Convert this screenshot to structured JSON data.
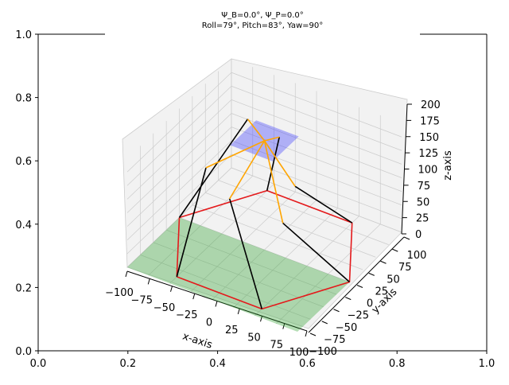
{
  "chart_data": {
    "type": "3d-line",
    "title_line1": "Ψ_B=0.0°, Ψ_P=0.0°",
    "title_line2": "Roll=79°, Pitch=83°, Yaw=90°",
    "xlabel": "x-axis",
    "ylabel": "y-axis",
    "zlabel": "z-axis",
    "xlim": [
      -100,
      100
    ],
    "ylim": [
      -100,
      100
    ],
    "zlim": [
      0,
      200
    ],
    "xticks": [
      "−100",
      "−75",
      "−50",
      "−25",
      "0",
      "25",
      "50",
      "75",
      "100"
    ],
    "yticks": [
      "−100",
      "−75",
      "−50",
      "−25",
      "0",
      "25",
      "50",
      "75",
      "100"
    ],
    "zticks": [
      "0",
      "25",
      "50",
      "75",
      "100",
      "125",
      "150",
      "175",
      "200"
    ],
    "outer_xticks": [
      "0.0",
      "0.2",
      "0.4",
      "0.6",
      "0.8",
      "1.0"
    ],
    "outer_yticks": [
      "0.0",
      "0.2",
      "0.4",
      "0.6",
      "0.8",
      "1.0"
    ],
    "grid": true,
    "colors": {
      "base": "#e41a1c",
      "legs": "#000000",
      "links": "#ffa500",
      "base_plane": "#2ca02c",
      "platform_plane": "#3333ff",
      "grid": "#cccccc",
      "pane": "#f2f2f2"
    },
    "base_points": [
      [
        -100,
        0,
        0
      ],
      [
        -50,
        86.6,
        0
      ],
      [
        50,
        86.6,
        0
      ],
      [
        100,
        0,
        0
      ],
      [
        50,
        -86.6,
        0
      ],
      [
        -50,
        -86.6,
        0
      ]
    ],
    "platform_points": [
      [
        -38,
        30,
        190
      ],
      [
        -10,
        45,
        160
      ],
      [
        30,
        10,
        125
      ],
      [
        40,
        -30,
        100
      ],
      [
        5,
        -75,
        165
      ],
      [
        -35,
        -55,
        180
      ]
    ],
    "apex": [
      0,
      0,
      200
    ],
    "base_plane": [
      [
        -100,
        0,
        0
      ],
      [
        100,
        0,
        0
      ],
      [
        100,
        -100,
        0
      ],
      [
        -100,
        -100,
        0
      ]
    ],
    "platform_plane": [
      [
        -25,
        -25,
        200
      ],
      [
        25,
        -25,
        200
      ],
      [
        25,
        25,
        200
      ],
      [
        -25,
        25,
        200
      ]
    ]
  }
}
